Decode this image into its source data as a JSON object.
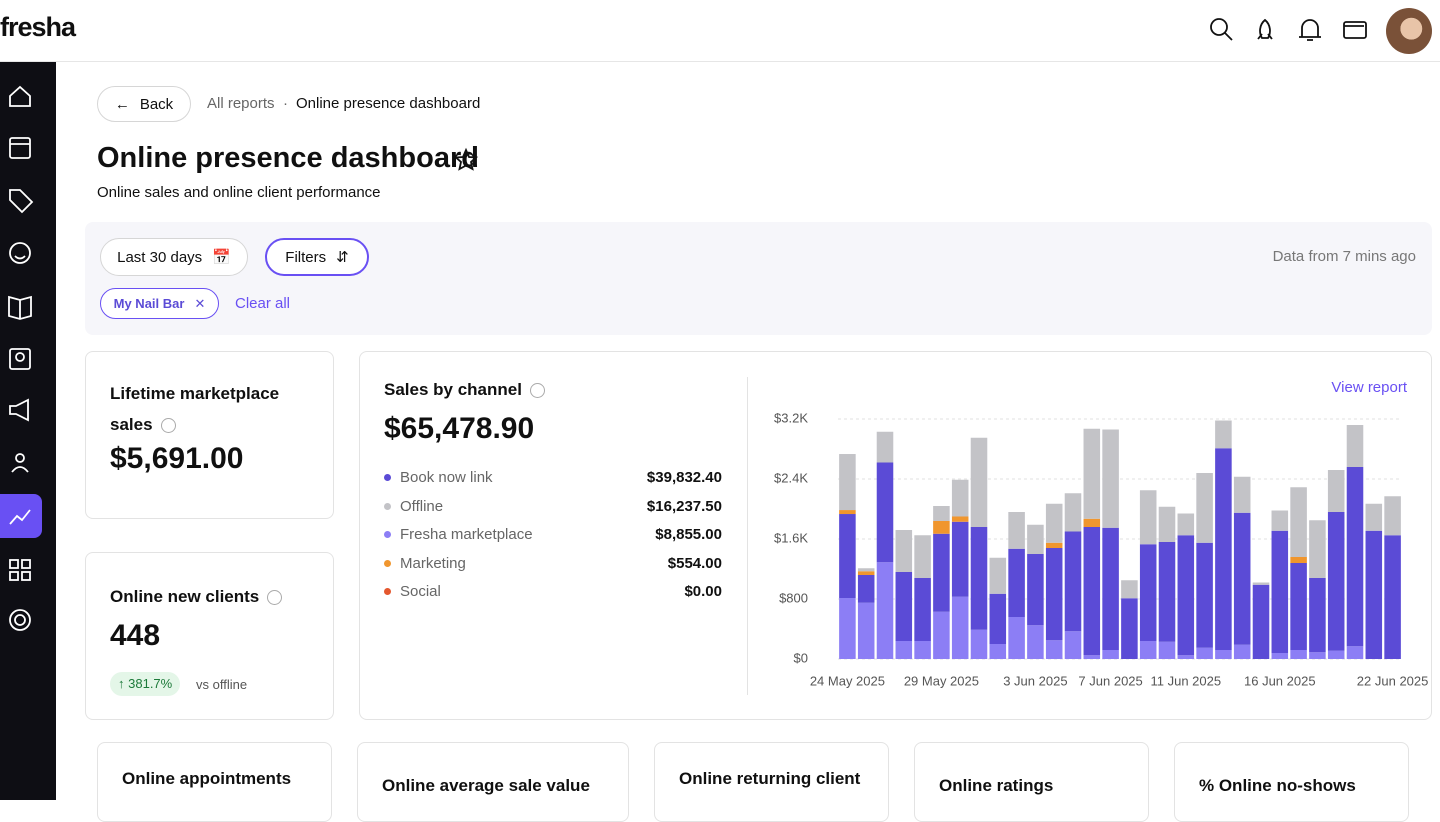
{
  "header": {
    "logo": "fresha"
  },
  "breadcrumb": {
    "back": "Back",
    "parent": "All reports",
    "separator": "·",
    "current": "Online presence dashboard"
  },
  "page": {
    "title": "Online presence dashboard",
    "subtitle": "Online sales and online client performance"
  },
  "filters": {
    "date_range": "Last 30 days",
    "filters": "Filters",
    "updated": "Data from 7 mins ago",
    "chips": [
      "My Nail Bar"
    ],
    "clear": "Clear all"
  },
  "cards": {
    "lifetime": {
      "title": "Lifetime marketplace sales",
      "value": "$5,691.00"
    },
    "new_clients": {
      "title": "Online new clients",
      "value": "448",
      "change": "381.7%",
      "comparison": "vs offline"
    },
    "sales_by_channel": {
      "title": "Sales by channel",
      "value": "$65,478.90",
      "link": "View report"
    }
  },
  "bottom_cards": [
    "Online appointments",
    "Online average sale value",
    "Online returning client",
    "Online ratings",
    "% Online no-shows"
  ],
  "chart_data": {
    "type": "bar",
    "stacked": true,
    "categories": [
      "24 May 2025",
      null,
      null,
      null,
      null,
      "29 May 2025",
      null,
      null,
      null,
      null,
      "3 Jun 2025",
      null,
      null,
      null,
      "7 Jun 2025",
      null,
      null,
      null,
      "11 Jun 2025",
      null,
      null,
      null,
      null,
      "16 Jun 2025",
      null,
      null,
      null,
      null,
      null,
      "22 Jun 2025"
    ],
    "series": [
      {
        "name": "Book now link",
        "total": "$39,832.40",
        "color": "#5b4bd6",
        "values": [
          1120,
          370,
          1330,
          920,
          840,
          1040,
          1000,
          1370,
          670,
          910,
          950,
          1230,
          1330,
          1710,
          1630,
          810,
          1290,
          1330,
          1600,
          1400,
          2690,
          1760,
          990,
          1630,
          1160,
          990,
          1850,
          2390,
          1710,
          1650
        ]
      },
      {
        "name": "Offline",
        "total": "$16,237.50",
        "color": "#c3c3c7",
        "values": [
          747,
          40,
          410,
          560,
          570,
          200,
          490,
          1190,
          480,
          490,
          390,
          520,
          510,
          1200,
          1310,
          240,
          720,
          470,
          290,
          930,
          370,
          480,
          30,
          270,
          930,
          770,
          560,
          560,
          360,
          520
        ]
      },
      {
        "name": "Fresha marketplace",
        "total": "$8,855.00",
        "color": "#8c7ef5",
        "values": [
          813,
          750,
          1290,
          240,
          240,
          630,
          830,
          390,
          200,
          560,
          450,
          250,
          370,
          50,
          120,
          0,
          240,
          230,
          50,
          150,
          120,
          190,
          0,
          80,
          120,
          90,
          110,
          170,
          0,
          0
        ]
      },
      {
        "name": "Marketing",
        "total": "$554.00",
        "color": "#f0962e",
        "values": [
          53,
          50,
          0,
          0,
          0,
          170,
          70,
          0,
          0,
          0,
          0,
          70,
          0,
          110,
          0,
          0,
          0,
          0,
          0,
          0,
          0,
          0,
          0,
          0,
          80,
          0,
          0,
          0,
          0,
          0
        ]
      },
      {
        "name": "Social",
        "total": "$0.00",
        "color": "#e4572e",
        "values": [
          0,
          0,
          0,
          0,
          0,
          0,
          0,
          0,
          0,
          0,
          0,
          0,
          0,
          0,
          0,
          0,
          0,
          0,
          0,
          0,
          0,
          0,
          0,
          0,
          0,
          0,
          0,
          0,
          0,
          0
        ]
      }
    ],
    "ylim": [
      0,
      3200
    ],
    "yticks": [
      {
        "value": 0,
        "label": "$0"
      },
      {
        "value": 800,
        "label": "$800"
      },
      {
        "value": 1600,
        "label": "$1.6K"
      },
      {
        "value": 2400,
        "label": "$2.4K"
      },
      {
        "value": 3200,
        "label": "$3.2K"
      }
    ],
    "grid": true
  }
}
